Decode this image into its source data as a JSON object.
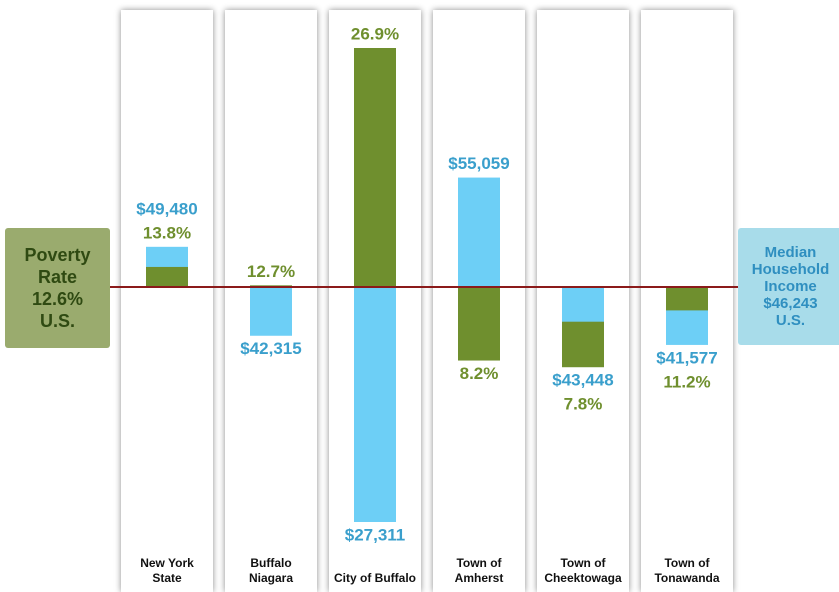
{
  "chart_data": {
    "type": "diverging_bar",
    "categories": [
      "New York State",
      "Buffalo Niagara",
      "City of Buffalo",
      "Town of Amherst",
      "Town of Cheektowaga",
      "Town of Tonawanda"
    ],
    "series": [
      {
        "name": "Poverty Rate",
        "color": "#6f8f2e",
        "label_color": "#6f8f2e",
        "values": [
          13.8,
          12.7,
          26.9,
          8.2,
          7.8,
          11.2
        ],
        "value_labels": [
          "13.8%",
          "12.7%",
          "26.9%",
          "8.2%",
          "7.8%",
          "11.2%"
        ],
        "baseline": 12.6,
        "baseline_label": "12.6%"
      },
      {
        "name": "Median Household Income",
        "color": "#6dcff6",
        "label_color": "#3a9fcc",
        "values": [
          49480,
          42315,
          27311,
          55059,
          43448,
          41577
        ],
        "value_labels": [
          "$49,480",
          "$42,315",
          "$27,311",
          "$55,059",
          "$43,448",
          "$41,577"
        ],
        "baseline": 46243,
        "baseline_label": "$46,243"
      }
    ],
    "reference_label": "U.S.",
    "baseline_color": "#8b1a1a"
  }
}
